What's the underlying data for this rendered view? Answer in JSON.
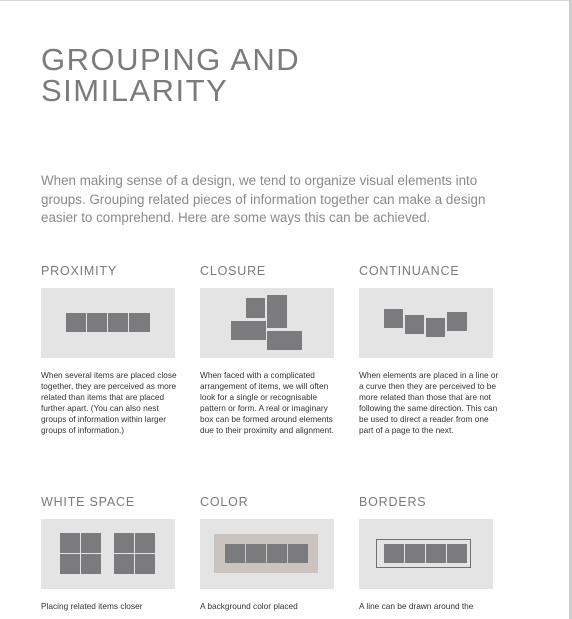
{
  "title_lines": [
    "GROUPING AND",
    "SIMILARITY"
  ],
  "intro": "When making sense of a design, we tend to organize visual elements into groups. Grouping related pieces of information together can make a design easier to comprehend. Here are some ways this can be achieved.",
  "items": {
    "proximity": {
      "heading": "PROXIMITY",
      "description": "When several items are placed close together, they are perceived as more related than items that are placed further apart. (You can also nest groups of information within larger groups of information.)"
    },
    "closure": {
      "heading": "CLOSURE",
      "description": "When faced with a complicated arrangement of items, we will often look for a single or recognisable pattern or form. A real or imaginary box can be formed around elements due to their proximity and alignment."
    },
    "continuance": {
      "heading": "CONTINUANCE",
      "description": "When elements are placed in a line or a curve then they are perceived to be more related than those that are not following the same direction. This can be used to direct a reader from one part of a page to the next."
    },
    "white_space": {
      "heading": "WHITE SPACE",
      "description": "Placing related items closer"
    },
    "color": {
      "heading": "COLOR",
      "description": "A background color placed"
    },
    "borders": {
      "heading": "BORDERS",
      "description": "A line can be drawn around the"
    }
  },
  "colors": {
    "title": "#7b7b7b",
    "panel": "#e4e4e5",
    "square": "#7b7b7d",
    "color_group_bg": "#cbc3bd"
  }
}
